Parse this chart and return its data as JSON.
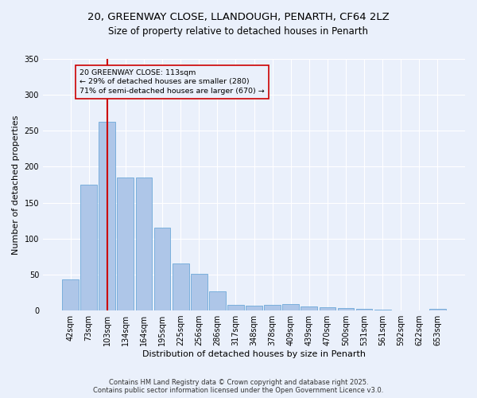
{
  "title_line1": "20, GREENWAY CLOSE, LLANDOUGH, PENARTH, CF64 2LZ",
  "title_line2": "Size of property relative to detached houses in Penarth",
  "xlabel": "Distribution of detached houses by size in Penarth",
  "ylabel": "Number of detached properties",
  "categories": [
    "42sqm",
    "73sqm",
    "103sqm",
    "134sqm",
    "164sqm",
    "195sqm",
    "225sqm",
    "256sqm",
    "286sqm",
    "317sqm",
    "348sqm",
    "378sqm",
    "409sqm",
    "439sqm",
    "470sqm",
    "500sqm",
    "531sqm",
    "561sqm",
    "592sqm",
    "622sqm",
    "653sqm"
  ],
  "values": [
    43,
    175,
    262,
    185,
    185,
    115,
    65,
    51,
    27,
    8,
    7,
    8,
    9,
    6,
    5,
    3,
    2,
    1,
    0,
    0,
    2
  ],
  "bar_color": "#aec6e8",
  "bar_edge_color": "#5a9fd4",
  "background_color": "#eaf0fb",
  "grid_color": "#ffffff",
  "vline_x": 2,
  "vline_color": "#cc0000",
  "annotation_text": "20 GREENWAY CLOSE: 113sqm\n← 29% of detached houses are smaller (280)\n71% of semi-detached houses are larger (670) →",
  "annotation_box_color": "#cc0000",
  "ylim": [
    0,
    350
  ],
  "yticks": [
    0,
    50,
    100,
    150,
    200,
    250,
    300,
    350
  ],
  "footnote": "Contains HM Land Registry data © Crown copyright and database right 2025.\nContains public sector information licensed under the Open Government Licence v3.0.",
  "title_fontsize": 9.5,
  "subtitle_fontsize": 8.5,
  "axis_label_fontsize": 8,
  "tick_fontsize": 7
}
